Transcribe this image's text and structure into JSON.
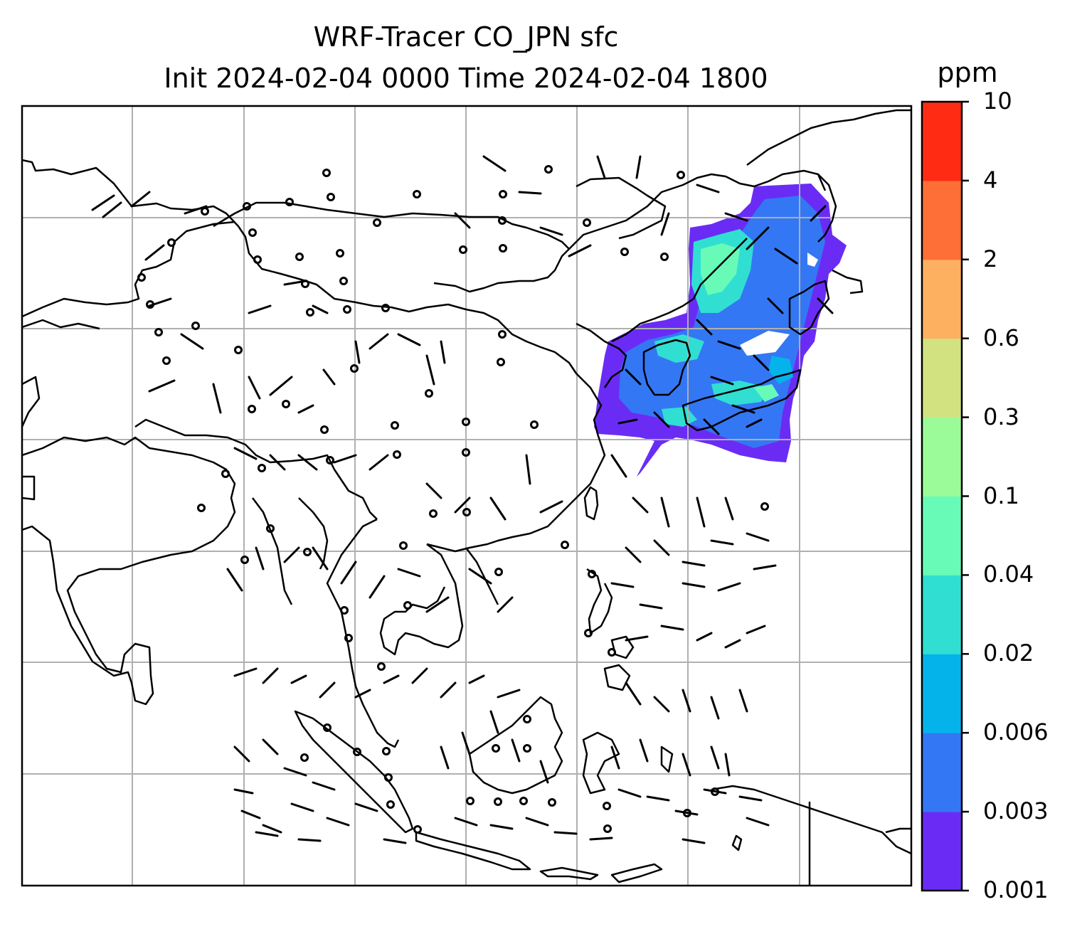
{
  "title": {
    "line1": "WRF-Tracer CO_JPN sfc",
    "line2": "Init 2024-02-04 0000 Time 2024-02-04 1800"
  },
  "colorbar": {
    "unit": "ppm",
    "ticks": [
      "0.001",
      "0.003",
      "0.006",
      "0.02",
      "0.04",
      "0.1",
      "0.3",
      "0.6",
      "2",
      "4",
      "10"
    ],
    "colors": [
      "#6a2cf5",
      "#3477f5",
      "#05b3eb",
      "#30dfd2",
      "#68fbb8",
      "#9bfb98",
      "#d3e281",
      "#fdb05f",
      "#fe6f37",
      "#ff2c13"
    ]
  },
  "map": {
    "gridlines": true,
    "fields": [
      "CO tracer concentration (filled)",
      "surface wind barbs"
    ]
  }
}
